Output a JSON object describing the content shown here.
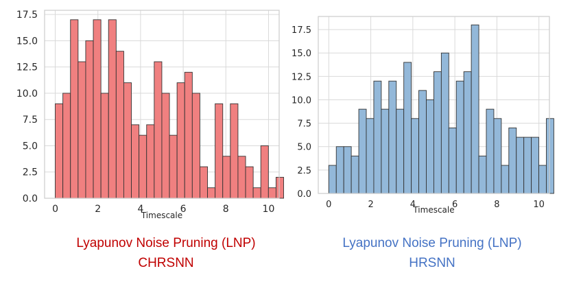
{
  "chart_data": [
    {
      "type": "bar",
      "xlabel": "Timescale",
      "ylabel": "",
      "xlim": [
        -0.5,
        10.5
      ],
      "ylim": [
        0,
        17.9
      ],
      "xticks": [
        "0",
        "2",
        "4",
        "6",
        "8",
        "10"
      ],
      "yticks": [
        "0.0",
        "2.5",
        "5.0",
        "7.5",
        "10.0",
        "12.5",
        "15.0",
        "17.5"
      ],
      "grid": true,
      "bin_start": 0,
      "bin_width": 0.357,
      "values": [
        9,
        10,
        17,
        13,
        15,
        17,
        10,
        17,
        14,
        11,
        7,
        6,
        7,
        13,
        10,
        6,
        11,
        12,
        10,
        3,
        1,
        9,
        4,
        9,
        4,
        3,
        1,
        5,
        1,
        2
      ],
      "bar_color": "#f08080",
      "edge_color": "#333333",
      "caption_line1": "Lyapunov Noise  Pruning  (LNP)",
      "caption_line2": "CHRSNN",
      "caption_color": "#c00000"
    },
    {
      "type": "bar",
      "xlabel": "Timescale",
      "ylabel": "",
      "xlim": [
        -0.5,
        10.5
      ],
      "ylim": [
        0,
        18.9
      ],
      "xticks": [
        "0",
        "2",
        "4",
        "6",
        "8",
        "10"
      ],
      "yticks": [
        "0.0",
        "2.5",
        "5.0",
        "7.5",
        "10.0",
        "12.5",
        "15.0",
        "17.5"
      ],
      "grid": true,
      "bin_start": 0,
      "bin_width": 0.357,
      "values": [
        3,
        5,
        5,
        4,
        9,
        8,
        12,
        9,
        12,
        9,
        14,
        8,
        11,
        10,
        13,
        15,
        7,
        12,
        13,
        18,
        4,
        9,
        8,
        3,
        7,
        6,
        6,
        6,
        3,
        8
      ],
      "bar_color": "#93b8d9",
      "edge_color": "#333333",
      "caption_line1": "Lyapunov Noise Pruning (LNP)",
      "caption_line2": "HRSNN",
      "caption_color": "#4472c4"
    }
  ]
}
